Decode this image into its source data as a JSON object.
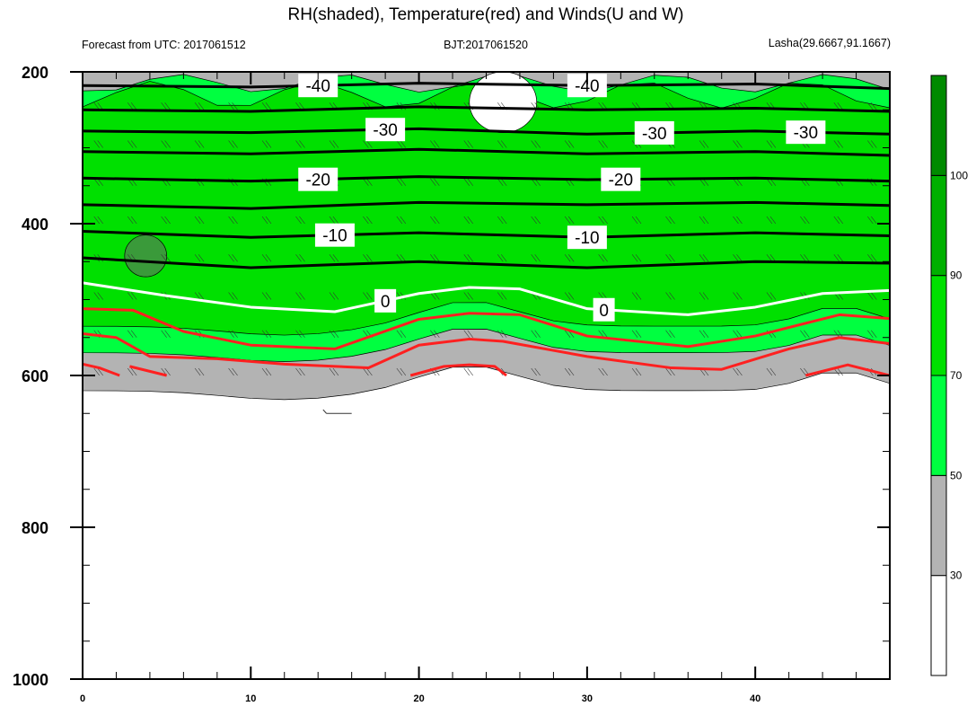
{
  "chart_data": {
    "type": "heatmap",
    "title": "RH(shaded), Temperature(red) and Winds(U and W)",
    "subtitle_left": "Forecast from UTC: 2017061512",
    "subtitle_center": "BJT:2017061520",
    "subtitle_right": "Lasha(29.6667,91.1667)",
    "xlabel": "",
    "ylabel": "",
    "xlim": [
      0,
      48
    ],
    "ylim": [
      1000,
      200
    ],
    "x_ticks": [
      "0",
      "10",
      "20",
      "30",
      "40"
    ],
    "x_tick_values": [
      0,
      10,
      20,
      30,
      40
    ],
    "y_ticks": [
      "200",
      "400",
      "600",
      "800",
      "1000"
    ],
    "y_tick_values": [
      200,
      400,
      600,
      800,
      1000
    ],
    "colorbar": {
      "labels": [
        "30",
        "50",
        "70",
        "90",
        "100"
      ],
      "levels": [
        0,
        30,
        50,
        70,
        90,
        100,
        110
      ],
      "colors": [
        "#ffffff",
        "#b3b3b3",
        "#00ff40",
        "#00e000",
        "#00b000",
        "#008a00"
      ]
    },
    "rh_bands": [
      {
        "level": "30-50",
        "top": 200,
        "bottom": 620,
        "color": "#b3b3b3"
      },
      {
        "level": "50-70",
        "top": 215,
        "bottom": 570,
        "color": "#00ff40"
      },
      {
        "level": "70-90",
        "top": 230,
        "bottom": 535,
        "color": "#00e000"
      }
    ],
    "rh_patches": [
      {
        "label": "low RH (<30)",
        "color": "#ffffff",
        "x": [
          23,
          27
        ],
        "p": [
          200,
          280
        ]
      },
      {
        "label": "high RH (>90)",
        "color": "#3a9a3a",
        "x": [
          2.5,
          5
        ],
        "p": [
          415,
          470
        ]
      }
    ],
    "temperature_contours": [
      {
        "value": -40,
        "color": "#000000",
        "label": "-40",
        "label_x": [
          14,
          30
        ],
        "x": [
          0,
          10,
          20,
          30,
          40,
          48
        ],
        "p": [
          218,
          220,
          215,
          218,
          216,
          222
        ]
      },
      {
        "value": -35,
        "color": "#000000",
        "x": [
          0,
          10,
          20,
          30,
          40,
          48
        ],
        "p": [
          250,
          252,
          246,
          250,
          248,
          252
        ]
      },
      {
        "value": -30,
        "color": "#000000",
        "label": "-30",
        "label_x": [
          18,
          34,
          43
        ],
        "x": [
          0,
          10,
          20,
          30,
          40,
          48
        ],
        "p": [
          278,
          280,
          275,
          282,
          278,
          282
        ]
      },
      {
        "value": -25,
        "color": "#000000",
        "x": [
          0,
          10,
          20,
          30,
          40,
          48
        ],
        "p": [
          305,
          308,
          302,
          308,
          305,
          310
        ]
      },
      {
        "value": -20,
        "color": "#000000",
        "label": "-20",
        "label_x": [
          14,
          32
        ],
        "x": [
          0,
          10,
          20,
          30,
          40,
          48
        ],
        "p": [
          340,
          344,
          338,
          342,
          340,
          344
        ]
      },
      {
        "value": -15,
        "color": "#000000",
        "x": [
          0,
          10,
          20,
          30,
          40,
          48
        ],
        "p": [
          375,
          380,
          372,
          375,
          372,
          376
        ]
      },
      {
        "value": -10,
        "color": "#000000",
        "label": "-10",
        "label_x": [
          15,
          30
        ],
        "x": [
          0,
          10,
          20,
          30,
          40,
          48
        ],
        "p": [
          410,
          418,
          412,
          418,
          412,
          416
        ]
      },
      {
        "value": -5,
        "color": "#000000",
        "x": [
          0,
          10,
          20,
          30,
          40,
          48
        ],
        "p": [
          445,
          458,
          450,
          458,
          450,
          452
        ]
      },
      {
        "value": 0,
        "color": "#ffffff",
        "label": "0",
        "label_x": [
          18,
          31
        ],
        "x": [
          0,
          5,
          10,
          15,
          20,
          23,
          26,
          30,
          36,
          40,
          44,
          48
        ],
        "p": [
          478,
          495,
          510,
          516,
          492,
          484,
          486,
          512,
          520,
          510,
          492,
          488
        ]
      },
      {
        "value": 5,
        "color": "#ff2020",
        "x": [
          0,
          3,
          6,
          10,
          15,
          20,
          23,
          26,
          30,
          36,
          40,
          45,
          48
        ],
        "p": [
          512,
          514,
          542,
          560,
          565,
          526,
          518,
          520,
          548,
          562,
          548,
          520,
          525
        ]
      },
      {
        "value": 10,
        "color": "#ff2020",
        "x": [
          0,
          2,
          4,
          8,
          12,
          17,
          20,
          23,
          25,
          30,
          35,
          38,
          42,
          45,
          48
        ],
        "p": [
          545,
          550,
          575,
          578,
          585,
          590,
          560,
          552,
          555,
          575,
          590,
          592,
          565,
          550,
          558
        ]
      },
      {
        "value": 15,
        "color": "#ff2020",
        "x": [
          0,
          1,
          2.2
        ],
        "p": [
          585,
          590,
          600
        ]
      },
      {
        "value": 15,
        "color": "#ff2020",
        "x": [
          2.8,
          5
        ],
        "p": [
          588,
          600
        ]
      },
      {
        "value": 15,
        "color": "#ff2020",
        "x": [
          19.5,
          21.5,
          23,
          24.5,
          25.2
        ],
        "p": [
          600,
          588,
          586,
          588,
          600
        ]
      },
      {
        "value": 15,
        "color": "#ff2020",
        "x": [
          43,
          45.5,
          48
        ],
        "p": [
          600,
          586,
          600
        ]
      }
    ]
  }
}
